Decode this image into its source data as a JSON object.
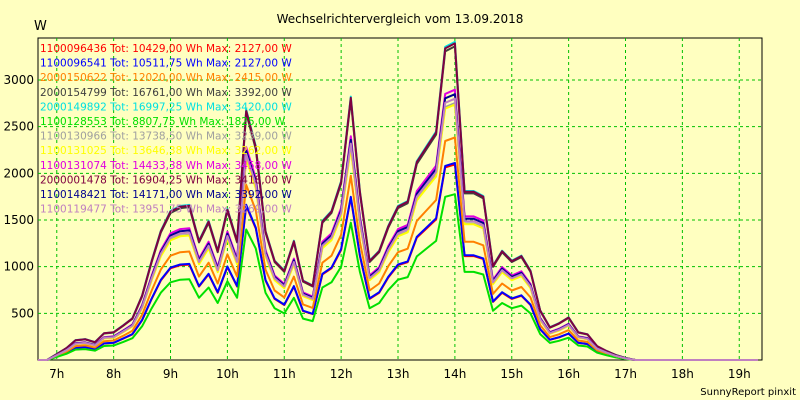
{
  "chart_data": {
    "type": "line",
    "title": "Wechselrichtervergleich vom 13.09.2018",
    "ylabel": "W",
    "footer": "SunnyReport pinxit",
    "xlim": [
      6.67,
      19.4
    ],
    "ylim": [
      0,
      3450
    ],
    "x_ticks": [
      7,
      8,
      9,
      10,
      11,
      12,
      13,
      14,
      15,
      16,
      17,
      18,
      19
    ],
    "x_tick_labels": [
      "7h",
      "8h",
      "9h",
      "10h",
      "11h",
      "12h",
      "13h",
      "14h",
      "15h",
      "16h",
      "17h",
      "18h",
      "19h"
    ],
    "y_ticks": [
      500,
      1000,
      1500,
      2000,
      2500,
      3000
    ],
    "grid": true,
    "legend_position": "top-left",
    "x": [
      6.67,
      6.83,
      7.0,
      7.17,
      7.33,
      7.5,
      7.67,
      7.83,
      8.0,
      8.17,
      8.33,
      8.5,
      8.67,
      8.83,
      9.0,
      9.17,
      9.33,
      9.5,
      9.67,
      9.83,
      10.0,
      10.17,
      10.33,
      10.5,
      10.67,
      10.83,
      11.0,
      11.17,
      11.33,
      11.5,
      11.67,
      11.83,
      12.0,
      12.17,
      12.33,
      12.5,
      12.67,
      12.83,
      13.0,
      13.17,
      13.33,
      13.5,
      13.67,
      13.83,
      14.0,
      14.17,
      14.33,
      14.5,
      14.67,
      14.83,
      15.0,
      15.17,
      15.33,
      15.5,
      15.67,
      15.83,
      16.0,
      16.17,
      16.33,
      16.5,
      16.67,
      16.83,
      17.0,
      17.17,
      17.33,
      17.5,
      17.67,
      17.83,
      18.0,
      18.17,
      18.33,
      18.5,
      18.67,
      18.83,
      19.0,
      19.17,
      19.33
    ],
    "series": [
      {
        "name": "1100096436",
        "label": "1100096436 Tot: 10429,00 Wh Max: 2127,00 W",
        "color": "#ff0000",
        "scale": 0.655
      },
      {
        "name": "1100096541",
        "label": "1100096541 Tot: 10511,75 Wh Max: 2127,00 W",
        "color": "#0000ff",
        "scale": 0.66
      },
      {
        "name": "2000150622",
        "label": "2000150622 Tot: 12020,00 Wh Max: 2415,00 W",
        "color": "#ff8000",
        "scale": 0.745
      },
      {
        "name": "2000154799",
        "label": "2000154799 Tot: 16761,00 Wh Max: 3392,00 W",
        "color": "#404040",
        "scale": 1.05
      },
      {
        "name": "2000149892",
        "label": "2000149892 Tot: 16997,25 Wh Max: 3420,00 W",
        "color": "#00e0e0",
        "scale": 1.065
      },
      {
        "name": "1100128553",
        "label": "1100128553 Tot: 8807,75 Wh Max: 1825,00 W",
        "color": "#00e000",
        "scale": 0.555
      },
      {
        "name": "1100130966",
        "label": "1100130966 Tot: 13738,50 Wh Max: 3239,00 W",
        "color": "#a0a0a0",
        "scale": 0.86
      },
      {
        "name": "1100131025",
        "label": "1100131025 Tot: 13646,38 Wh Max: 3262,00 W",
        "color": "#ffff00",
        "scale": 0.855
      },
      {
        "name": "1100131074",
        "label": "1100131074 Tot: 14433,38 Wh Max: 3458,00 W",
        "color": "#e000e0",
        "scale": 0.905
      },
      {
        "name": "2000001478",
        "label": "2000001478 Tot: 16904,25 Wh Max: 3418,00 W",
        "color": "#800040",
        "scale": 1.06
      },
      {
        "name": "1100148421",
        "label": "1100148421 Tot: 14171,00 Wh Max: 3392,00 W",
        "color": "#000090",
        "scale": 0.89
      },
      {
        "name": "1100119477",
        "label": "1100119477 Tot: 13951,75 Wh Max: 3269,00 W",
        "color": "#c080c0",
        "scale": 0.875
      }
    ],
    "base_profile": [
      0,
      0,
      60,
      120,
      200,
      210,
      180,
      270,
      280,
      350,
      420,
      650,
      1000,
      1300,
      1500,
      1550,
      1560,
      1200,
      1400,
      1100,
      1520,
      1200,
      2520,
      2150,
      1300,
      1000,
      900,
      1200,
      800,
      750,
      1400,
      1500,
      1800,
      2650,
      1700,
      1000,
      1100,
      1350,
      1550,
      1600,
      2000,
      2150,
      2300,
      3150,
      3200,
      1700,
      1700,
      1650,
      950,
      1100,
      1000,
      1050,
      900,
      500,
      330,
      370,
      430,
      280,
      260,
      140,
      90,
      50,
      20,
      0,
      0,
      0,
      0,
      0,
      0,
      0,
      0,
      0,
      0,
      0,
      0,
      0,
      0
    ]
  }
}
